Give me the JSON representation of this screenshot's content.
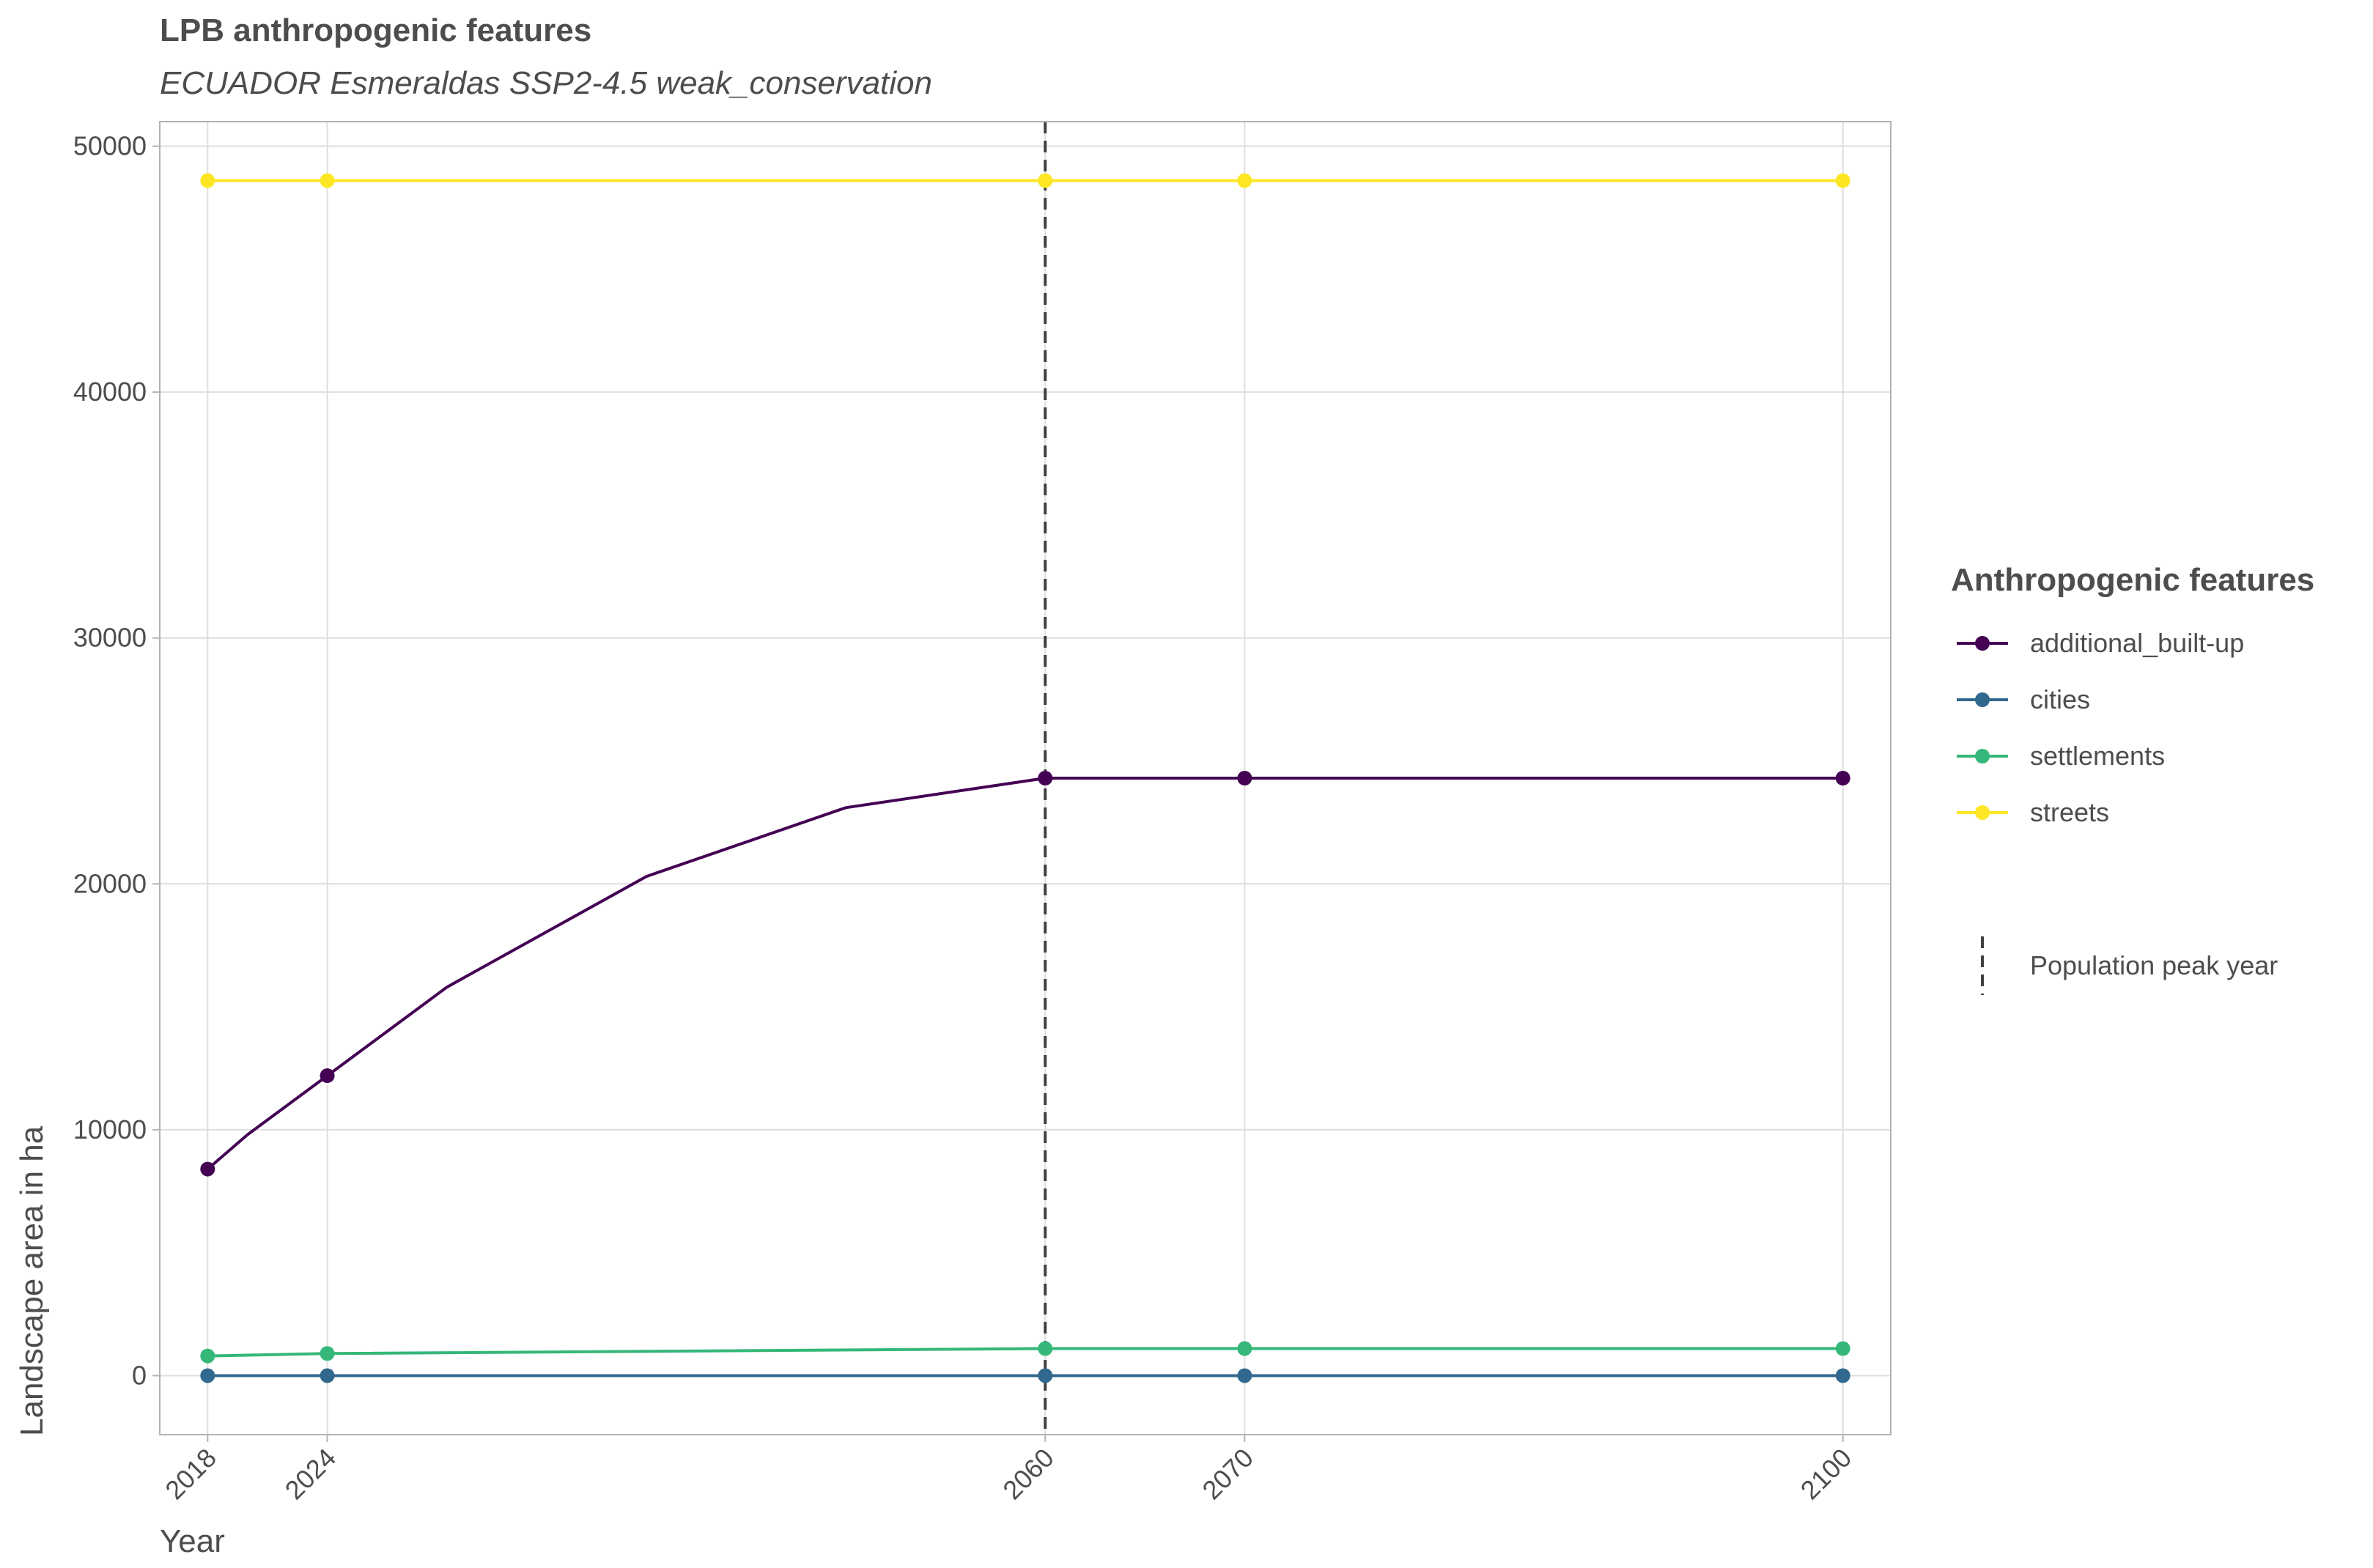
{
  "chart_data": {
    "type": "line",
    "title": "LPB anthropogenic features",
    "subtitle": "ECUADOR Esmeraldas SSP2-4.5 weak_conservation",
    "xlabel": "Year",
    "ylabel": "Landscape area in ha",
    "xlim": [
      2015.6,
      2102.4
    ],
    "ylim": [
      -2400,
      51000
    ],
    "x_ticks": [
      2018,
      2024,
      2060,
      2070,
      2100
    ],
    "y_ticks": [
      0,
      10000,
      20000,
      30000,
      40000,
      50000
    ],
    "grid": true,
    "legend_placement": "right",
    "legend_title": "Anthropogenic features",
    "series": [
      {
        "name": "additional_built-up",
        "color": "#440154",
        "x": [
          2018,
          2020,
          2024,
          2030,
          2040,
          2050,
          2060,
          2070,
          2100
        ],
        "values": [
          8400,
          9800,
          12200,
          15800,
          20300,
          23100,
          24300,
          24300,
          24300
        ],
        "marker_x": [
          2018,
          2024,
          2060,
          2070,
          2100
        ]
      },
      {
        "name": "cities",
        "color": "#31688e",
        "x": [
          2018,
          2024,
          2060,
          2070,
          2100
        ],
        "values": [
          0,
          0,
          0,
          0,
          0
        ],
        "marker_x": [
          2018,
          2024,
          2060,
          2070,
          2100
        ]
      },
      {
        "name": "settlements",
        "color": "#35b779",
        "x": [
          2018,
          2024,
          2060,
          2070,
          2100
        ],
        "values": [
          800,
          900,
          1100,
          1100,
          1100
        ],
        "marker_x": [
          2018,
          2024,
          2060,
          2070,
          2100
        ]
      },
      {
        "name": "streets",
        "color": "#fde725",
        "x": [
          2018,
          2024,
          2060,
          2070,
          2100
        ],
        "values": [
          48600,
          48600,
          48600,
          48600,
          48600
        ],
        "marker_x": [
          2018,
          2024,
          2060,
          2070,
          2100
        ]
      }
    ],
    "vline": {
      "x": 2060,
      "label": "Population peak year",
      "style": "dashed",
      "color": "#404040"
    }
  }
}
